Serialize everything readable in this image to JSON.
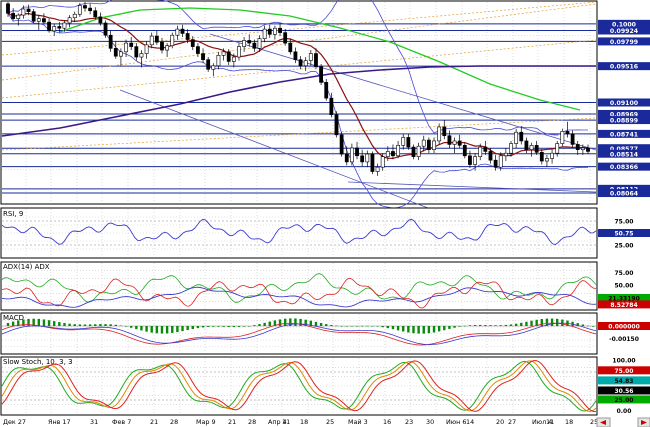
{
  "colors": {
    "background": "#ffffff",
    "grid": "#c8c8c8",
    "frame": "#000000",
    "candle_up": "#ffffff",
    "candle_down": "#000000",
    "bollinger": "#4a4ad8",
    "sma_short": "#8b1010",
    "sma_mid": "#22cc22",
    "sma_long": "#3a1a8a",
    "level_line": "#1a2a9a",
    "channel": "#5555bb",
    "fib": "#e0a030",
    "rsi": "#3a3ad0",
    "adx": "#3a3ad0",
    "di_plus": "#22aa22",
    "di_minus": "#dd2222",
    "macd_hist": "#0a8a0a",
    "macd_line": "#dd2222",
    "macd_signal": "#3a3ad0",
    "stoch_k": "#22aa22",
    "stoch_d": "#dd2222",
    "stoch_slow": "#e08a00",
    "label_level": "#1a2a9a",
    "label_dark": "#000000",
    "label_red": "#cc0000",
    "label_green": "#00aa00",
    "label_teal": "#00aaaa"
  },
  "date_labels": [
    "Дек 27",
    "Янв 17",
    "31",
    "Фев 7",
    "21",
    "28",
    "Мар 9",
    "21",
    "28",
    "Апр 4",
    "11",
    "18",
    "25",
    "Май 3",
    "16",
    "23",
    "30",
    "Июн 6",
    "14",
    "20",
    "27",
    "Июл 4",
    "11",
    "18",
    "25"
  ],
  "chart_data": [
    {
      "type": "candlestick",
      "panel": "price",
      "price_labels": [
        "0.1000",
        "0.09924",
        "0.09799",
        "0.09516",
        "0.09100",
        "0.08969",
        "0.08899",
        "0.08741",
        "0.08577",
        "0.08514",
        "0.08366",
        "0.08112",
        "0.08064"
      ],
      "ylim": [
        0.0795,
        0.1025
      ],
      "candles": [
        [
          0.1023,
          0.1025,
          0.1008,
          0.1012
        ],
        [
          0.1012,
          0.1018,
          0.1004,
          0.1006
        ],
        [
          0.1006,
          0.1012,
          0.0998,
          0.101
        ],
        [
          0.101,
          0.1021,
          0.1006,
          0.1017
        ],
        [
          0.1017,
          0.1022,
          0.101,
          0.1014
        ],
        [
          0.1014,
          0.1017,
          0.1001,
          0.1003
        ],
        [
          0.1003,
          0.101,
          0.0993,
          0.1006
        ],
        [
          0.1006,
          0.1012,
          0.1,
          0.1002
        ],
        [
          0.1002,
          0.1006,
          0.099,
          0.0992
        ],
        [
          0.0992,
          0.1,
          0.0986,
          0.0997
        ],
        [
          0.0997,
          0.1002,
          0.099,
          0.0995
        ],
        [
          0.0995,
          0.1004,
          0.0991,
          0.1001
        ],
        [
          0.1001,
          0.101,
          0.0996,
          0.1007
        ],
        [
          0.1007,
          0.1014,
          0.1002,
          0.1011
        ],
        [
          0.1011,
          0.1024,
          0.1008,
          0.1021
        ],
        [
          0.1021,
          0.1025,
          0.1014,
          0.1018
        ],
        [
          0.1018,
          0.1023,
          0.1011,
          0.1015
        ],
        [
          0.1015,
          0.1019,
          0.1005,
          0.1008
        ],
        [
          0.1008,
          0.1013,
          0.0998,
          0.1001
        ],
        [
          0.1001,
          0.1004,
          0.0984,
          0.0987
        ],
        [
          0.0987,
          0.0992,
          0.0968,
          0.0972
        ],
        [
          0.0972,
          0.098,
          0.096,
          0.0963
        ],
        [
          0.0963,
          0.0972,
          0.0952,
          0.0968
        ],
        [
          0.0968,
          0.0982,
          0.0962,
          0.0978
        ],
        [
          0.0978,
          0.0985,
          0.097,
          0.0974
        ],
        [
          0.0974,
          0.0978,
          0.0958,
          0.0962
        ],
        [
          0.0962,
          0.097,
          0.095,
          0.0966
        ],
        [
          0.0966,
          0.098,
          0.096,
          0.0976
        ],
        [
          0.0976,
          0.099,
          0.0972,
          0.0986
        ],
        [
          0.0986,
          0.0992,
          0.0976,
          0.0979
        ],
        [
          0.0979,
          0.0984,
          0.0966,
          0.097
        ],
        [
          0.097,
          0.0978,
          0.0962,
          0.0975
        ],
        [
          0.0975,
          0.099,
          0.0972,
          0.0987
        ],
        [
          0.0987,
          0.0998,
          0.0982,
          0.0994
        ],
        [
          0.0994,
          0.0999,
          0.0985,
          0.0989
        ],
        [
          0.0989,
          0.0994,
          0.0978,
          0.0982
        ],
        [
          0.0982,
          0.0986,
          0.097,
          0.0974
        ],
        [
          0.0974,
          0.0978,
          0.0962,
          0.0966
        ],
        [
          0.0966,
          0.0972,
          0.0955,
          0.0959
        ],
        [
          0.0959,
          0.0962,
          0.0945,
          0.0948
        ],
        [
          0.0948,
          0.0955,
          0.094,
          0.0952
        ],
        [
          0.0952,
          0.0968,
          0.0948,
          0.0964
        ],
        [
          0.0964,
          0.0972,
          0.0958,
          0.0968
        ],
        [
          0.0968,
          0.0971,
          0.0953,
          0.0957
        ],
        [
          0.0957,
          0.0966,
          0.095,
          0.0962
        ],
        [
          0.0962,
          0.0978,
          0.0958,
          0.0974
        ],
        [
          0.0974,
          0.0985,
          0.0968,
          0.0981
        ],
        [
          0.0981,
          0.0988,
          0.0974,
          0.0978
        ],
        [
          0.0978,
          0.0982,
          0.0968,
          0.0972
        ],
        [
          0.0972,
          0.0987,
          0.0968,
          0.0983
        ],
        [
          0.0983,
          0.0998,
          0.0979,
          0.0994
        ],
        [
          0.0994,
          0.0999,
          0.0984,
          0.0988
        ],
        [
          0.0988,
          0.0998,
          0.0982,
          0.0995
        ],
        [
          0.0995,
          0.1001,
          0.0986,
          0.099
        ],
        [
          0.099,
          0.0994,
          0.0975,
          0.0978
        ],
        [
          0.0978,
          0.0983,
          0.0965,
          0.0968
        ],
        [
          0.0968,
          0.0973,
          0.0955,
          0.0959
        ],
        [
          0.0959,
          0.0963,
          0.0948,
          0.0952
        ],
        [
          0.0952,
          0.0962,
          0.0946,
          0.0958
        ],
        [
          0.0958,
          0.097,
          0.0952,
          0.0966
        ],
        [
          0.0966,
          0.0972,
          0.0948,
          0.0951
        ],
        [
          0.0951,
          0.0954,
          0.093,
          0.0933
        ],
        [
          0.0933,
          0.0937,
          0.0912,
          0.0915
        ],
        [
          0.0915,
          0.0921,
          0.0893,
          0.0896
        ],
        [
          0.0896,
          0.09,
          0.087,
          0.0873
        ],
        [
          0.0873,
          0.0876,
          0.0848,
          0.0851
        ],
        [
          0.0851,
          0.086,
          0.0838,
          0.0842
        ],
        [
          0.0842,
          0.0863,
          0.0838,
          0.0858
        ],
        [
          0.0858,
          0.0865,
          0.0845,
          0.0849
        ],
        [
          0.0849,
          0.0856,
          0.0837,
          0.0842
        ],
        [
          0.0842,
          0.0855,
          0.0836,
          0.0851
        ],
        [
          0.0851,
          0.0854,
          0.0828,
          0.0831
        ],
        [
          0.0831,
          0.084,
          0.0826,
          0.0836
        ],
        [
          0.0836,
          0.0852,
          0.0832,
          0.0848
        ],
        [
          0.0848,
          0.086,
          0.0843,
          0.0854
        ],
        [
          0.0854,
          0.0862,
          0.0845,
          0.0849
        ],
        [
          0.0849,
          0.0866,
          0.0846,
          0.0861
        ],
        [
          0.0861,
          0.0874,
          0.0856,
          0.087
        ],
        [
          0.087,
          0.0874,
          0.0856,
          0.0859
        ],
        [
          0.0859,
          0.0862,
          0.0845,
          0.0848
        ],
        [
          0.0848,
          0.0864,
          0.0844,
          0.086
        ],
        [
          0.086,
          0.0872,
          0.0854,
          0.0867
        ],
        [
          0.0867,
          0.087,
          0.0852,
          0.0856
        ],
        [
          0.0856,
          0.087,
          0.0852,
          0.0866
        ],
        [
          0.0866,
          0.0886,
          0.0862,
          0.0882
        ],
        [
          0.0882,
          0.089,
          0.0868,
          0.0872
        ],
        [
          0.0872,
          0.0878,
          0.0858,
          0.0862
        ],
        [
          0.0862,
          0.087,
          0.0852,
          0.0866
        ],
        [
          0.0866,
          0.0873,
          0.0858,
          0.0861
        ],
        [
          0.0861,
          0.0864,
          0.0846,
          0.0849
        ],
        [
          0.0849,
          0.0855,
          0.0835,
          0.0839
        ],
        [
          0.0839,
          0.0852,
          0.0832,
          0.0848
        ],
        [
          0.0848,
          0.0863,
          0.0844,
          0.0859
        ],
        [
          0.0859,
          0.0866,
          0.085,
          0.0854
        ],
        [
          0.0854,
          0.0858,
          0.084,
          0.0844
        ],
        [
          0.0844,
          0.085,
          0.0832,
          0.0836
        ],
        [
          0.0836,
          0.0853,
          0.0832,
          0.0849
        ],
        [
          0.0849,
          0.0858,
          0.0843,
          0.0852
        ],
        [
          0.0852,
          0.0866,
          0.0848,
          0.0863
        ],
        [
          0.0863,
          0.088,
          0.0858,
          0.0876
        ],
        [
          0.0876,
          0.0883,
          0.0862,
          0.0866
        ],
        [
          0.0866,
          0.087,
          0.0852,
          0.0856
        ],
        [
          0.0856,
          0.0864,
          0.0848,
          0.0861
        ],
        [
          0.0861,
          0.0866,
          0.085,
          0.0853
        ],
        [
          0.0853,
          0.0857,
          0.0839,
          0.0843
        ],
        [
          0.0843,
          0.085,
          0.0836,
          0.0846
        ],
        [
          0.0846,
          0.0856,
          0.084,
          0.0852
        ],
        [
          0.0852,
          0.0866,
          0.0848,
          0.0863
        ],
        [
          0.0863,
          0.088,
          0.086,
          0.0877
        ],
        [
          0.0877,
          0.0888,
          0.087,
          0.0874
        ],
        [
          0.0874,
          0.0878,
          0.0858,
          0.0862
        ],
        [
          0.0862,
          0.0866,
          0.085,
          0.0856
        ],
        [
          0.0856,
          0.0862,
          0.085,
          0.0858
        ],
        [
          0.0858,
          0.0862,
          0.0851,
          0.0854
        ]
      ],
      "indicators": [
        "Bollinger Bands",
        "Moving average (short)",
        "Moving average (medium)",
        "Moving average (long)"
      ]
    },
    {
      "type": "line",
      "panel": "rsi",
      "title": "RSI, 9",
      "levels": [
        "75.00",
        "50.75",
        "25.00"
      ],
      "ylim": [
        0,
        100
      ]
    },
    {
      "type": "line",
      "panel": "adx",
      "title": "ADX(14) ADX",
      "levels": [
        "75.00",
        "50.00",
        "21.33190",
        "8.52784"
      ],
      "ylim": [
        0,
        100
      ]
    },
    {
      "type": "bar",
      "panel": "macd",
      "title": "MACD",
      "levels": [
        "0.000000",
        "-0.00150"
      ],
      "ylim": [
        -0.0022,
        0.0009
      ]
    },
    {
      "type": "line",
      "panel": "stochastic",
      "title": "Slow Stoch, 10, 3, 3",
      "levels": [
        "100.00",
        "75.00",
        "54.83",
        "30.56",
        "25.00",
        "0.00"
      ],
      "ylim": [
        0,
        100
      ]
    }
  ]
}
